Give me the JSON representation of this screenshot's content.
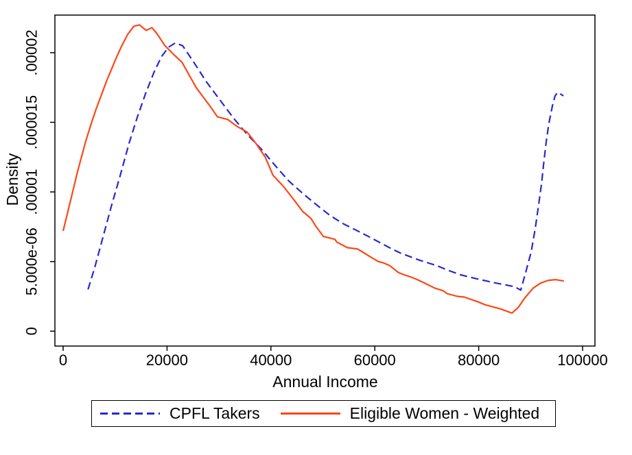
{
  "chart_data": {
    "type": "line",
    "title": "",
    "xlabel": "Annual Income",
    "ylabel": "Density",
    "xlim": [
      0,
      100000
    ],
    "ylim": [
      0,
      2.27e-05
    ],
    "grid": false,
    "legend_position": "bottom",
    "axis_color": "#000000",
    "xticks": [
      {
        "value": 0,
        "label": "0"
      },
      {
        "value": 20000,
        "label": "20000"
      },
      {
        "value": 40000,
        "label": "40000"
      },
      {
        "value": 60000,
        "label": "60000"
      },
      {
        "value": 80000,
        "label": "80000"
      },
      {
        "value": 100000,
        "label": "100000"
      }
    ],
    "yticks": [
      {
        "value": 0,
        "label": "0"
      },
      {
        "value": 5e-06,
        "label": "5.000e-06"
      },
      {
        "value": 1e-05,
        "label": ".00001"
      },
      {
        "value": 1.5e-05,
        "label": ".000015"
      },
      {
        "value": 2e-05,
        "label": ".00002"
      }
    ],
    "series": [
      {
        "name": "CPFL Takers",
        "color": "#2727d3",
        "line_style": "dashed",
        "points": [
          [
            4800,
            3e-06
          ],
          [
            6100,
            4.6e-06
          ],
          [
            7700,
            6.8e-06
          ],
          [
            9300,
            9e-06
          ],
          [
            11000,
            1.12e-05
          ],
          [
            12700,
            1.35e-05
          ],
          [
            14300,
            1.54e-05
          ],
          [
            15900,
            1.71e-05
          ],
          [
            17500,
            1.86e-05
          ],
          [
            18900,
            1.97e-05
          ],
          [
            20300,
            2.04e-05
          ],
          [
            21600,
            2.07e-05
          ],
          [
            23000,
            2.05e-05
          ],
          [
            25000,
            1.94e-05
          ],
          [
            27600,
            1.79e-05
          ],
          [
            30200,
            1.66e-05
          ],
          [
            32800,
            1.53e-05
          ],
          [
            35500,
            1.41e-05
          ],
          [
            38100,
            1.31e-05
          ],
          [
            40800,
            1.19e-05
          ],
          [
            43400,
            1.08e-05
          ],
          [
            46100,
            9.9e-06
          ],
          [
            48700,
            9.1e-06
          ],
          [
            51400,
            8.3e-06
          ],
          [
            54000,
            7.7e-06
          ],
          [
            56700,
            7.2e-06
          ],
          [
            59300,
            6.7e-06
          ],
          [
            63300,
            5.9e-06
          ],
          [
            65000,
            5.6e-06
          ],
          [
            68600,
            5.1e-06
          ],
          [
            72000,
            4.7e-06
          ],
          [
            73900,
            4.4e-06
          ],
          [
            76500,
            4.05e-06
          ],
          [
            79200,
            3.8e-06
          ],
          [
            81500,
            3.6e-06
          ],
          [
            83400,
            3.45e-06
          ],
          [
            86900,
            3.2e-06
          ],
          [
            88100,
            2.95e-06
          ],
          [
            89100,
            4.3e-06
          ],
          [
            90100,
            5.7e-06
          ],
          [
            90900,
            7.4e-06
          ],
          [
            91500,
            9e-06
          ],
          [
            92100,
            1.06e-05
          ],
          [
            92500,
            1.2e-05
          ],
          [
            93000,
            1.36e-05
          ],
          [
            93500,
            1.49e-05
          ],
          [
            94200,
            1.62e-05
          ],
          [
            94700,
            1.69e-05
          ],
          [
            95200,
            1.715e-05
          ],
          [
            95900,
            1.7e-05
          ],
          [
            96300,
            1.69e-05
          ]
        ]
      },
      {
        "name": "Eligible Women - Weighted",
        "color": "#ff4514",
        "line_style": "solid",
        "points": [
          [
            0,
            7.2e-06
          ],
          [
            1500,
            9.5e-06
          ],
          [
            2800,
            1.15e-05
          ],
          [
            4400,
            1.37e-05
          ],
          [
            5400,
            1.49e-05
          ],
          [
            6400,
            1.6e-05
          ],
          [
            7400,
            1.7e-05
          ],
          [
            8400,
            1.8e-05
          ],
          [
            9400,
            1.89e-05
          ],
          [
            10300,
            1.97e-05
          ],
          [
            11300,
            2.05e-05
          ],
          [
            12400,
            2.13e-05
          ],
          [
            13600,
            2.19e-05
          ],
          [
            14700,
            2.2e-05
          ],
          [
            16000,
            2.16e-05
          ],
          [
            17100,
            2.18e-05
          ],
          [
            18000,
            2.14e-05
          ],
          [
            19600,
            2.05e-05
          ],
          [
            21200,
            1.99e-05
          ],
          [
            22900,
            1.93e-05
          ],
          [
            24400,
            1.83e-05
          ],
          [
            25600,
            1.75e-05
          ],
          [
            27200,
            1.67e-05
          ],
          [
            28200,
            1.62e-05
          ],
          [
            29700,
            1.54e-05
          ],
          [
            31700,
            1.52e-05
          ],
          [
            33500,
            1.47e-05
          ],
          [
            35400,
            1.43e-05
          ],
          [
            37100,
            1.35e-05
          ],
          [
            38900,
            1.25e-05
          ],
          [
            40400,
            1.12e-05
          ],
          [
            42400,
            1.04e-05
          ],
          [
            44500,
            9.4e-06
          ],
          [
            46100,
            8.6e-06
          ],
          [
            47700,
            8.1e-06
          ],
          [
            48700,
            7.5e-06
          ],
          [
            50100,
            6.8e-06
          ],
          [
            52300,
            6.6e-06
          ],
          [
            52700,
            6.4e-06
          ],
          [
            54700,
            6e-06
          ],
          [
            56700,
            5.9e-06
          ],
          [
            57600,
            5.7e-06
          ],
          [
            59300,
            5.3e-06
          ],
          [
            60700,
            5e-06
          ],
          [
            61700,
            4.9e-06
          ],
          [
            62900,
            4.7e-06
          ],
          [
            64600,
            4.2e-06
          ],
          [
            66000,
            4e-06
          ],
          [
            66900,
            3.9e-06
          ],
          [
            68200,
            3.7e-06
          ],
          [
            69900,
            3.4e-06
          ],
          [
            71500,
            3.1e-06
          ],
          [
            73200,
            2.9e-06
          ],
          [
            73900,
            2.7e-06
          ],
          [
            75900,
            2.5e-06
          ],
          [
            77200,
            2.45e-06
          ],
          [
            79900,
            2.1e-06
          ],
          [
            81200,
            1.9e-06
          ],
          [
            84200,
            1.6e-06
          ],
          [
            86400,
            1.3e-06
          ],
          [
            87600,
            1.7e-06
          ],
          [
            88900,
            2.4e-06
          ],
          [
            90500,
            3.1e-06
          ],
          [
            91900,
            3.45e-06
          ],
          [
            93400,
            3.65e-06
          ],
          [
            94800,
            3.7e-06
          ],
          [
            96400,
            3.6e-06
          ]
        ]
      }
    ]
  }
}
